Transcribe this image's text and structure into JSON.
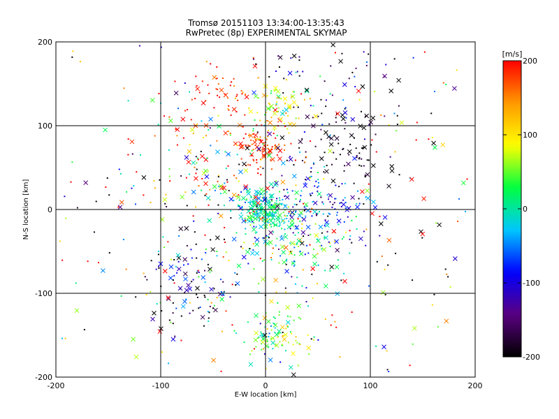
{
  "chart_data": {
    "type": "scatter",
    "title": "Tromsø 20151103 13:34:00-13:35:43",
    "subtitle": "RwPretec (8p) EXPERIMENTAL SKYMAP",
    "xlabel": "E-W location [km]",
    "ylabel": "N-S location [km]",
    "xlim": [
      -200,
      200
    ],
    "ylim": [
      -200,
      200
    ],
    "xticks": [
      "-200",
      "-100",
      "0",
      "100",
      "200"
    ],
    "yticks": [
      "-200",
      "-100",
      "0",
      "100",
      "200"
    ],
    "grid": true,
    "colorbar": {
      "label": "[m/s]",
      "range": [
        -200,
        200
      ],
      "ticks": [
        "200",
        "100",
        "0",
        "-100",
        "-200"
      ],
      "colormap": "rainbow black-violet-blue-cyan-green-yellow-orange-red",
      "stops": [
        "#000000",
        "#5a0080",
        "#0000ff",
        "#00c8ff",
        "#00ff40",
        "#ffff00",
        "#ff9900",
        "#ff0000"
      ]
    },
    "marker_types": [
      "x",
      "dot"
    ],
    "clusters": [
      {
        "x": -5,
        "y": 75,
        "spread": 12,
        "count": 90,
        "velocity_mean": 185,
        "velocity_spread": 25
      },
      {
        "x": 10,
        "y": 120,
        "spread": 15,
        "count": 80,
        "velocity_mean": 90,
        "velocity_spread": 40
      },
      {
        "x": 0,
        "y": 0,
        "spread": 12,
        "count": 220,
        "velocity_mean": 0,
        "velocity_spread": 30
      },
      {
        "x": 50,
        "y": 5,
        "spread": 25,
        "count": 120,
        "velocity_mean": -90,
        "velocity_spread": 60
      },
      {
        "x": 70,
        "y": 75,
        "spread": 22,
        "count": 80,
        "velocity_mean": -190,
        "velocity_spread": 30
      },
      {
        "x": 75,
        "y": 160,
        "spread": 35,
        "count": 60,
        "velocity_mean": -140,
        "velocity_spread": 80
      },
      {
        "x": -40,
        "y": 140,
        "spread": 22,
        "count": 50,
        "velocity_mean": 185,
        "velocity_spread": 30
      },
      {
        "x": 10,
        "y": -150,
        "spread": 15,
        "count": 90,
        "velocity_mean": 40,
        "velocity_spread": 45
      },
      {
        "x": 20,
        "y": -40,
        "spread": 25,
        "count": 130,
        "velocity_mean": 10,
        "velocity_spread": 70
      },
      {
        "x": -70,
        "y": -90,
        "spread": 25,
        "count": 100,
        "velocity_mean": -120,
        "velocity_spread": 120
      },
      {
        "x": -50,
        "y": 40,
        "spread": 30,
        "count": 90,
        "velocity_mean": 80,
        "velocity_spread": 110
      },
      {
        "x": 0,
        "y": 0,
        "spread": 110,
        "count": 450,
        "velocity_mean": 0,
        "velocity_spread": 200
      }
    ]
  }
}
